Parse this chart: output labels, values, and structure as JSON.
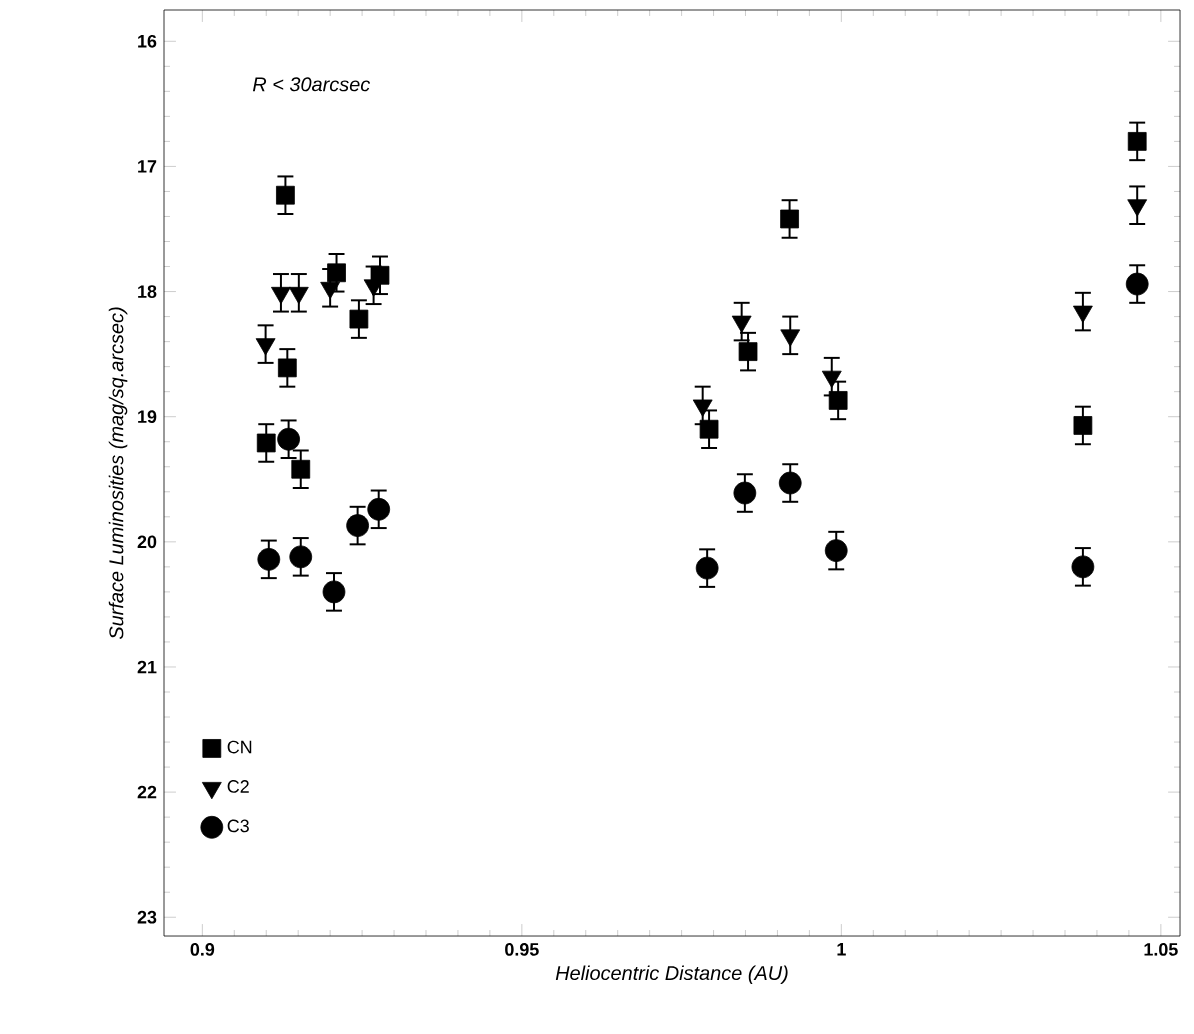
{
  "chart_data": {
    "type": "scatter",
    "xlabel": "Heliocentric Distance (AU)",
    "ylabel": "Surface Luminosities (mag/sq.arcsec)",
    "annotations": [
      "R < 30arcsec"
    ],
    "xlim": [
      0.894,
      1.053
    ],
    "ylim": [
      23.15,
      15.75
    ],
    "xticks": [
      0.9,
      0.95,
      1,
      1.05
    ],
    "yticks": [
      16,
      17,
      18,
      19,
      20,
      21,
      22,
      23
    ],
    "grid": false,
    "legend": "bottom left",
    "series": [
      {
        "name": "CN",
        "color": "#000000",
        "marker": "square",
        "x": [
          0.913,
          0.9133,
          0.921,
          0.9245,
          0.9278,
          0.91,
          0.9154,
          0.9919,
          0.9854,
          0.9793,
          0.9995,
          1.0463,
          1.0378
        ],
        "values": [
          17.23,
          18.61,
          17.85,
          18.22,
          17.87,
          19.21,
          19.42,
          17.42,
          18.48,
          19.1,
          18.87,
          16.8,
          19.07
        ],
        "errors": [
          0.15,
          0.15,
          0.15,
          0.15,
          0.15,
          0.15,
          0.15,
          0.15,
          0.15,
          0.15,
          0.15,
          0.15,
          0.15
        ]
      },
      {
        "name": "C2",
        "color": "#000000",
        "marker": "triangle",
        "x": [
          0.9099,
          0.9123,
          0.9151,
          0.92,
          0.9268,
          0.9844,
          0.992,
          0.9783,
          0.9985,
          1.0463,
          1.0378
        ],
        "values": [
          18.42,
          18.01,
          18.01,
          17.97,
          17.95,
          18.24,
          18.35,
          18.91,
          18.68,
          17.31,
          18.16
        ],
        "errors": [
          0.15,
          0.15,
          0.15,
          0.15,
          0.15,
          0.15,
          0.15,
          0.15,
          0.15,
          0.15,
          0.15
        ]
      },
      {
        "name": "C3",
        "color": "#000000",
        "marker": "circle",
        "x": [
          0.9135,
          0.9104,
          0.9154,
          0.9206,
          0.9243,
          0.9276,
          0.9849,
          0.992,
          0.979,
          0.9992,
          1.0463,
          1.0378
        ],
        "values": [
          19.18,
          20.14,
          20.12,
          20.4,
          19.87,
          19.74,
          19.61,
          19.53,
          20.21,
          20.07,
          17.94,
          20.2
        ],
        "errors": [
          0.15,
          0.15,
          0.15,
          0.15,
          0.15,
          0.15,
          0.15,
          0.15,
          0.15,
          0.15,
          0.15,
          0.15
        ]
      }
    ]
  }
}
